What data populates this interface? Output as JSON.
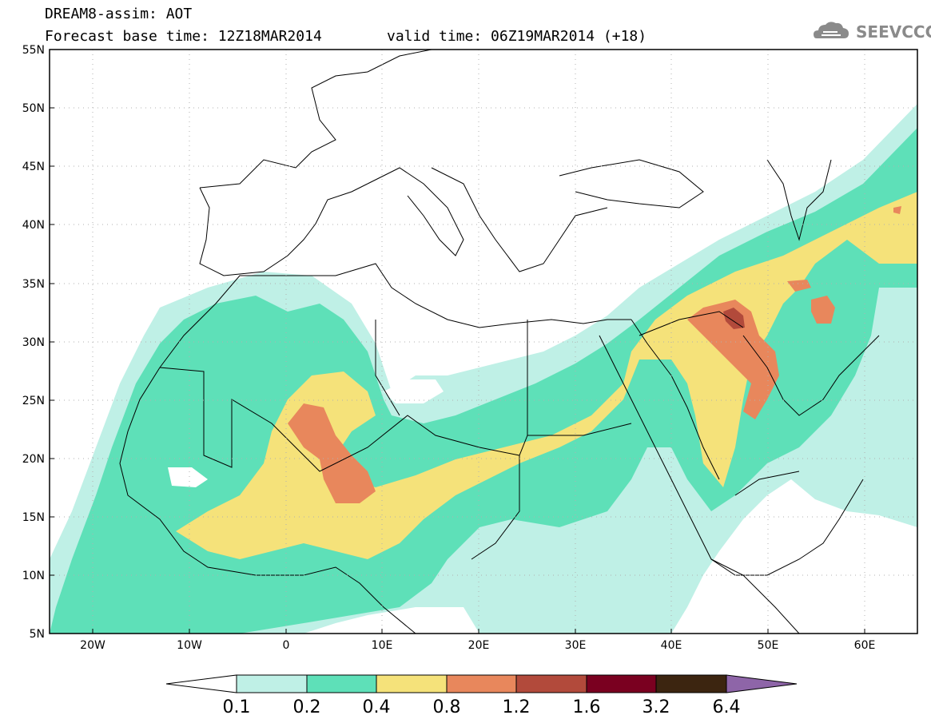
{
  "header": {
    "title": "DREAM8-assim: AOT",
    "base_time": "Forecast base time: 12Z18MAR2014",
    "valid_time": "valid time: 06Z19MAR2014 (+18)",
    "logo_text": "SEEVCCC"
  },
  "map": {
    "lat_labels": [
      "55N",
      "50N",
      "45N",
      "40N",
      "35N",
      "30N",
      "25N",
      "20N",
      "15N",
      "10N",
      "5N"
    ],
    "lon_labels": [
      "20W",
      "10W",
      "0",
      "10E",
      "20E",
      "30E",
      "40E",
      "50E",
      "60E"
    ],
    "lat_range": [
      5,
      55
    ],
    "lon_range": [
      -25,
      65
    ]
  },
  "colorbar": {
    "labels": [
      "0.1",
      "0.2",
      "0.4",
      "0.8",
      "1.2",
      "1.6",
      "3.2",
      "6.4"
    ],
    "colors": [
      "#ffffff",
      "#bff0e6",
      "#5ee0b8",
      "#f5e27a",
      "#e8875c",
      "#b24a3b",
      "#7a0020",
      "#3c2510",
      "#8e65a8"
    ]
  }
}
